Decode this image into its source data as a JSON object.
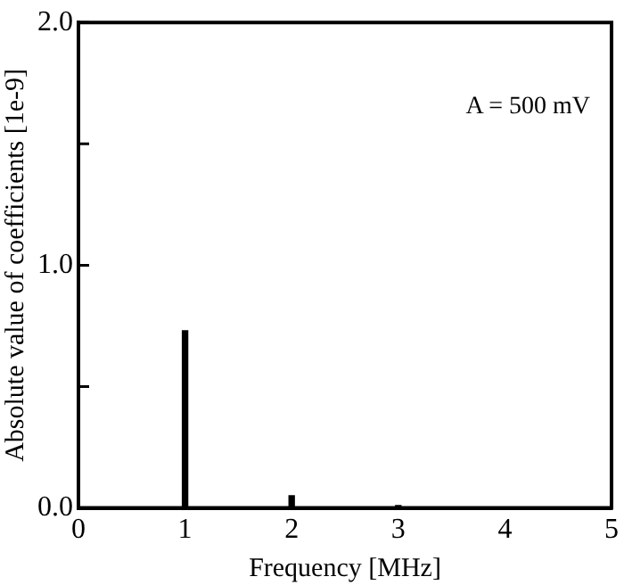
{
  "chart_data": {
    "type": "bar",
    "xlabel": "Frequency [MHz]",
    "ylabel": "Absolute value of coefficients [1e-9]",
    "x": [
      1,
      2,
      3
    ],
    "values": [
      0.73,
      0.05,
      0.01
    ],
    "color": "#000000",
    "xlim": [
      0,
      5
    ],
    "xticks": [
      0,
      1,
      2,
      3,
      4,
      5
    ],
    "ylim": [
      0,
      2
    ],
    "yticks": [
      {
        "value": 0,
        "label": "0.0"
      },
      {
        "value": 0.5,
        "label": null
      },
      {
        "value": 1,
        "label": "1.0"
      },
      {
        "value": 1.5,
        "label": null
      },
      {
        "value": 2,
        "label": "2.0"
      }
    ],
    "grid": false,
    "legend": false,
    "annotations": [
      "A = 500 mV"
    ]
  }
}
